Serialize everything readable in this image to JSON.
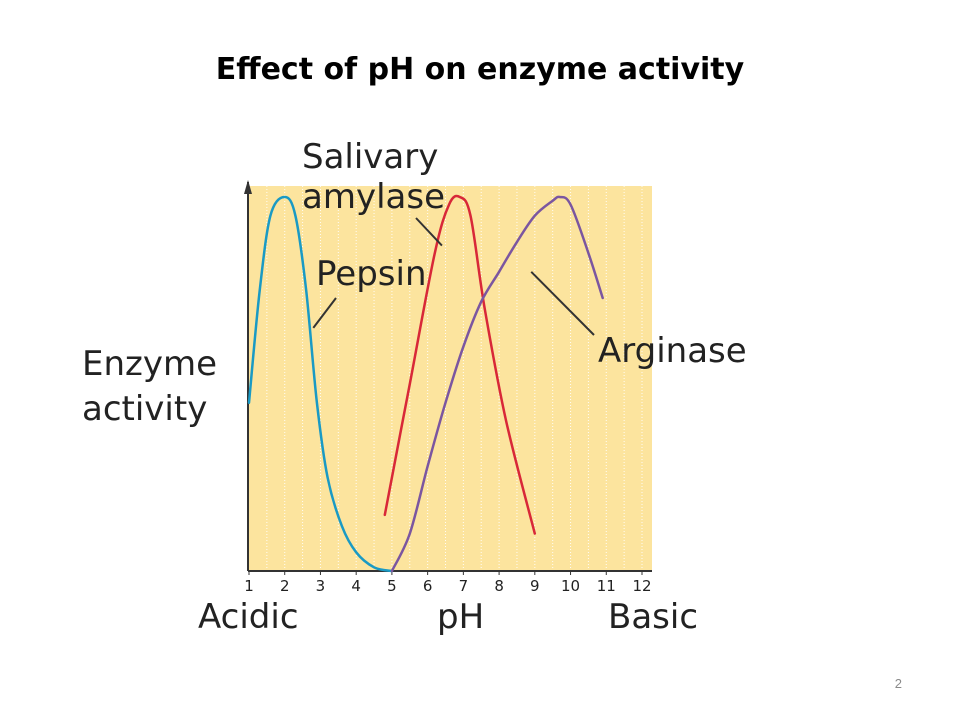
{
  "slide": {
    "title": "Effect of pH on enzyme activity",
    "page_number": "2"
  },
  "chart_data": {
    "type": "line",
    "ylabel_lines": [
      "Enzyme",
      "activity"
    ],
    "xlabel": "pH",
    "x_left_label": "Acidic",
    "x_right_label": "Basic",
    "x_ticks": [
      "1",
      "2",
      "3",
      "4",
      "5",
      "6",
      "7",
      "8",
      "9",
      "10",
      "11",
      "12"
    ],
    "xlim": [
      1,
      12
    ],
    "ylim": [
      0,
      1
    ],
    "grid": "vertical dotted lines at each pH",
    "colors": {
      "background": "#fce49e",
      "grid": "#ffffff",
      "axis": "#333333",
      "pepsin": "#1a9ac4",
      "salivary_amylase": "#d82838",
      "arginase": "#7b56a0"
    },
    "series": [
      {
        "name": "Pepsin",
        "color_key": "pepsin",
        "points": [
          [
            1.0,
            0.45
          ],
          [
            1.3,
            0.75
          ],
          [
            1.6,
            0.95
          ],
          [
            2.0,
            1.0
          ],
          [
            2.3,
            0.95
          ],
          [
            2.6,
            0.75
          ],
          [
            2.9,
            0.45
          ],
          [
            3.2,
            0.25
          ],
          [
            3.6,
            0.12
          ],
          [
            4.0,
            0.05
          ],
          [
            4.5,
            0.01
          ],
          [
            5.0,
            0.0
          ]
        ]
      },
      {
        "name": "Salivary amylase",
        "label_lines": [
          "Salivary",
          "amylase"
        ],
        "color_key": "salivary_amylase",
        "points": [
          [
            4.8,
            0.15
          ],
          [
            5.5,
            0.5
          ],
          [
            6.2,
            0.85
          ],
          [
            6.6,
            0.98
          ],
          [
            6.9,
            1.0
          ],
          [
            7.2,
            0.95
          ],
          [
            7.6,
            0.7
          ],
          [
            8.2,
            0.4
          ],
          [
            9.0,
            0.1
          ]
        ]
      },
      {
        "name": "Arginase",
        "color_key": "arginase",
        "points": [
          [
            5.0,
            0.0
          ],
          [
            5.5,
            0.1
          ],
          [
            6.0,
            0.28
          ],
          [
            6.5,
            0.45
          ],
          [
            7.0,
            0.6
          ],
          [
            7.5,
            0.72
          ],
          [
            8.0,
            0.8
          ],
          [
            8.5,
            0.88
          ],
          [
            9.0,
            0.95
          ],
          [
            9.5,
            0.99
          ],
          [
            9.7,
            1.0
          ],
          [
            10.0,
            0.98
          ],
          [
            10.5,
            0.85
          ],
          [
            10.9,
            0.73
          ]
        ]
      }
    ]
  }
}
